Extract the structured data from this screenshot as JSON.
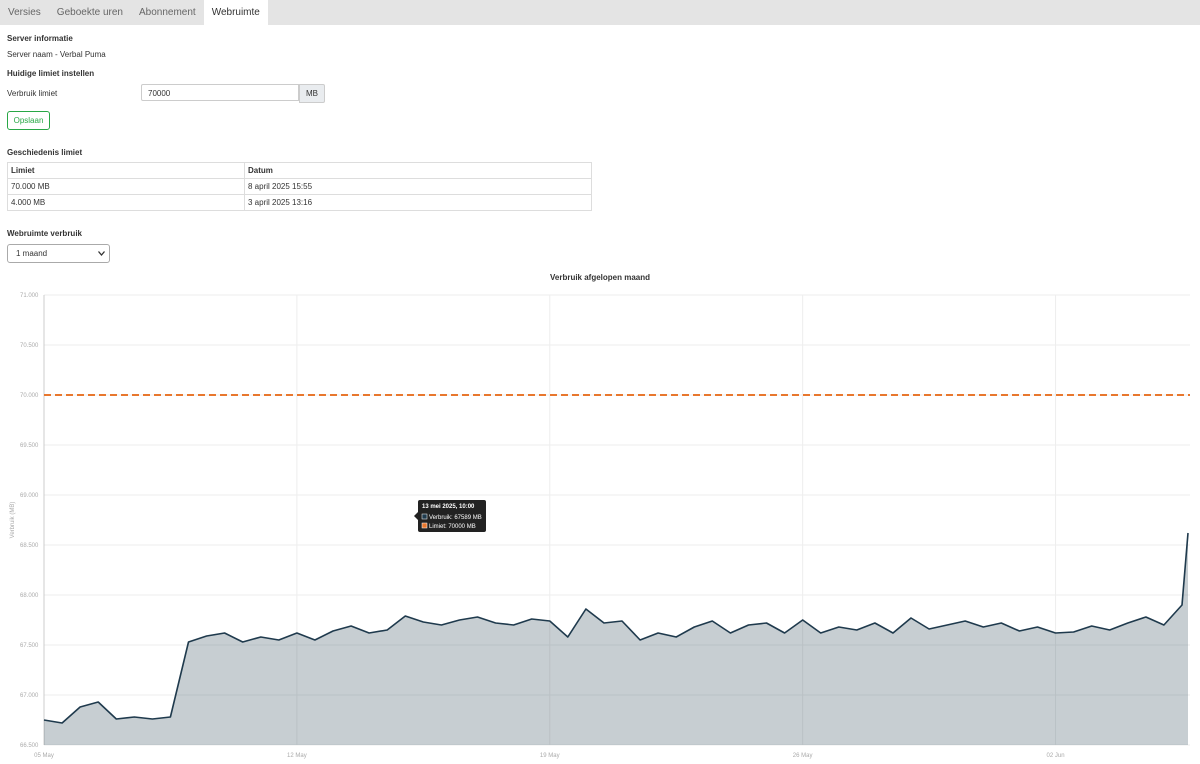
{
  "tabs": [
    "Versies",
    "Geboekte uren",
    "Abonnement",
    "Webruimte"
  ],
  "server_info": {
    "heading": "Server informatie",
    "name": "Server naam - Verbal Puma"
  },
  "limit_form": {
    "heading": "Huidige limiet instellen",
    "label": "Verbruik limiet",
    "input": "70000",
    "unit": "MB",
    "button": "Opslaan"
  },
  "history": {
    "heading": "Geschiedenis limiet",
    "columns": [
      "Limiet",
      "Datum"
    ],
    "rows": [
      [
        "70.000 MB",
        "8 april 2025 15:55"
      ],
      [
        "4.000 MB",
        "3 april 2025 13:16"
      ]
    ]
  },
  "usage": {
    "heading": "Webruimte verbruik",
    "period": "1 maand"
  },
  "chart_data": {
    "type": "area",
    "title": "Verbruik afgelopen maand",
    "y_label": "Verbruik (MB)",
    "x": [
      "2025-05-05T00:00",
      "2025-05-05T12:00",
      "2025-05-06T00:00",
      "2025-05-06T12:00",
      "2025-05-07T00:00",
      "2025-05-07T12:00",
      "2025-05-08T00:00",
      "2025-05-08T12:00",
      "2025-05-09T00:00",
      "2025-05-09T12:00",
      "2025-05-10T00:00",
      "2025-05-10T12:00",
      "2025-05-11T00:00",
      "2025-05-11T12:00",
      "2025-05-12T00:00",
      "2025-05-12T12:00",
      "2025-05-13T00:00",
      "2025-05-13T12:00",
      "2025-05-14T00:00",
      "2025-05-14T12:00",
      "2025-05-15T00:00",
      "2025-05-15T12:00",
      "2025-05-16T00:00",
      "2025-05-16T12:00",
      "2025-05-17T00:00",
      "2025-05-17T12:00",
      "2025-05-18T00:00",
      "2025-05-18T12:00",
      "2025-05-19T00:00",
      "2025-05-19T12:00",
      "2025-05-20T00:00",
      "2025-05-20T12:00",
      "2025-05-21T00:00",
      "2025-05-21T12:00",
      "2025-05-22T00:00",
      "2025-05-22T12:00",
      "2025-05-23T00:00",
      "2025-05-23T12:00",
      "2025-05-24T00:00",
      "2025-05-24T12:00",
      "2025-05-25T00:00",
      "2025-05-25T12:00",
      "2025-05-26T00:00",
      "2025-05-26T12:00",
      "2025-05-27T00:00",
      "2025-05-27T12:00",
      "2025-05-28T00:00",
      "2025-05-28T12:00",
      "2025-05-29T00:00",
      "2025-05-29T12:00",
      "2025-05-30T00:00",
      "2025-05-30T12:00",
      "2025-05-31T00:00",
      "2025-05-31T12:00",
      "2025-06-01T00:00",
      "2025-06-01T12:00",
      "2025-06-02T00:00",
      "2025-06-02T12:00",
      "2025-06-03T00:00",
      "2025-06-03T12:00",
      "2025-06-04T00:00",
      "2025-06-04T12:00",
      "2025-06-05T00:00",
      "2025-06-05T12:00",
      "2025-06-05T16:00"
    ],
    "values": [
      66750,
      66720,
      66880,
      66930,
      66760,
      66780,
      66760,
      66780,
      67530,
      67590,
      67620,
      67530,
      67580,
      67550,
      67620,
      67550,
      67640,
      67690,
      67620,
      67650,
      67790,
      67730,
      67700,
      67750,
      67780,
      67720,
      67700,
      67760,
      67740,
      67580,
      67860,
      67720,
      67740,
      67550,
      67620,
      67580,
      67680,
      67740,
      67620,
      67700,
      67720,
      67620,
      67750,
      67620,
      67680,
      67650,
      67720,
      67620,
      67770,
      67660,
      67700,
      67740,
      67680,
      67720,
      67640,
      67680,
      67620,
      67630,
      67690,
      67650,
      67720,
      67780,
      67700,
      67900,
      68620
    ],
    "color": "#1f3a4d",
    "limit": {
      "value": 70000,
      "color": "#e8772e"
    },
    "xlim": [
      "2025-05-05T00:00",
      "2025-06-05T16:00"
    ],
    "xticks": [
      {
        "value": "2025-05-05T00:00",
        "label": "05 May"
      },
      {
        "value": "2025-05-12T00:00",
        "label": "12 May"
      },
      {
        "value": "2025-05-19T00:00",
        "label": "19 May"
      },
      {
        "value": "2025-05-26T00:00",
        "label": "26 May"
      },
      {
        "value": "2025-06-02T00:00",
        "label": "02 Jun"
      }
    ],
    "ylim": [
      66500,
      71000
    ],
    "yticks": [
      {
        "value": 66500,
        "label": "66.500"
      },
      {
        "value": 67000,
        "label": "67.000"
      },
      {
        "value": 67500,
        "label": "67.500"
      },
      {
        "value": 68000,
        "label": "68.000"
      },
      {
        "value": 68500,
        "label": "68.500"
      },
      {
        "value": 69000,
        "label": "69.000"
      },
      {
        "value": 69500,
        "label": "69.500"
      },
      {
        "value": 70000,
        "label": "70.000"
      },
      {
        "value": 70500,
        "label": "70.500"
      },
      {
        "value": 71000,
        "label": "71.000"
      }
    ],
    "grid": true,
    "tooltip": {
      "title": "13 mei 2025, 10:00",
      "lines": [
        "Verbruik: 67589 MB",
        "Limiet: 70000 MB"
      ]
    }
  }
}
